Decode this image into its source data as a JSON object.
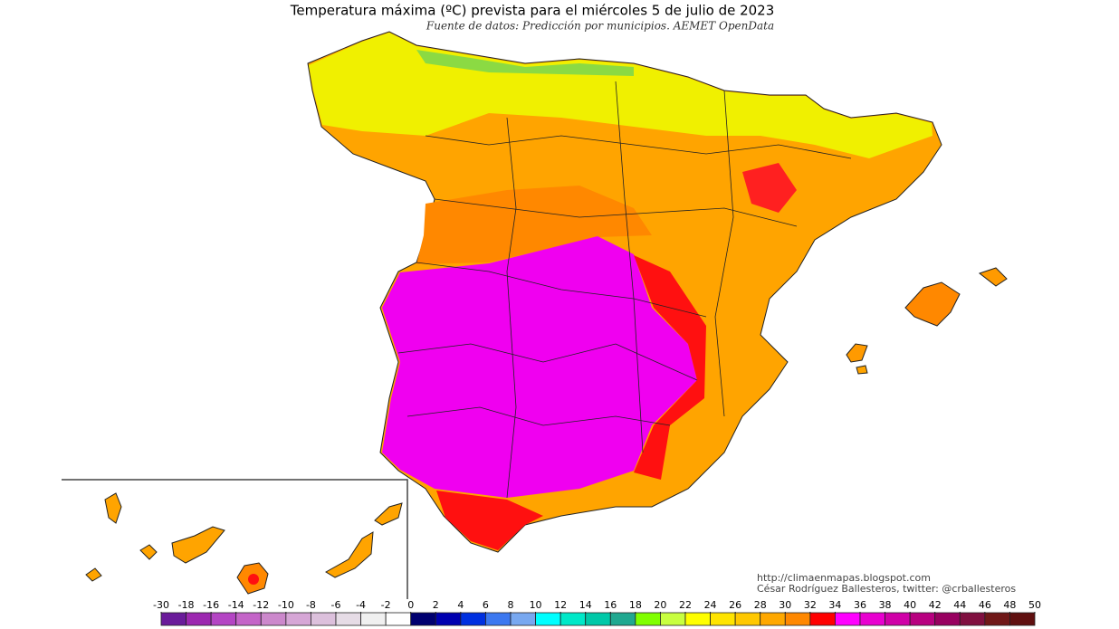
{
  "title": "Temperatura máxima (ºC) prevista para el miércoles 5 de julio de 2023",
  "subtitle": "Fuente de datos: Predicción por municipios. AEMET OpenData",
  "credits": [
    "http://climaenmapas.blogspot.com",
    "César Rodríguez Ballesteros, twitter: @crballesteros"
  ],
  "colorbar": {
    "ticks": [
      -30,
      -18,
      -16,
      -14,
      -12,
      -10,
      -8,
      -6,
      -4,
      -2,
      0,
      2,
      4,
      6,
      8,
      10,
      12,
      14,
      16,
      18,
      20,
      22,
      24,
      26,
      28,
      30,
      32,
      34,
      36,
      38,
      40,
      42,
      44,
      46,
      48,
      50
    ],
    "colors": [
      "#6a1b9a",
      "#9c27b0",
      "#b444c4",
      "#c464c8",
      "#cc88cc",
      "#d6a6d6",
      "#dcc0dc",
      "#e6dce6",
      "#f0f0f0",
      "#ffffff",
      "#000070",
      "#0000b0",
      "#0030e0",
      "#3c78f0",
      "#78a8f0",
      "#00ffff",
      "#00e8c8",
      "#00c8a8",
      "#20a890",
      "#80ff00",
      "#c8ff40",
      "#ffff00",
      "#ffe400",
      "#ffc800",
      "#ffa800",
      "#ff8800",
      "#ff0000",
      "#ff00ff",
      "#e800d0",
      "#d000a8",
      "#b80080",
      "#980060",
      "#801040",
      "#701818",
      "#601010"
    ]
  }
}
